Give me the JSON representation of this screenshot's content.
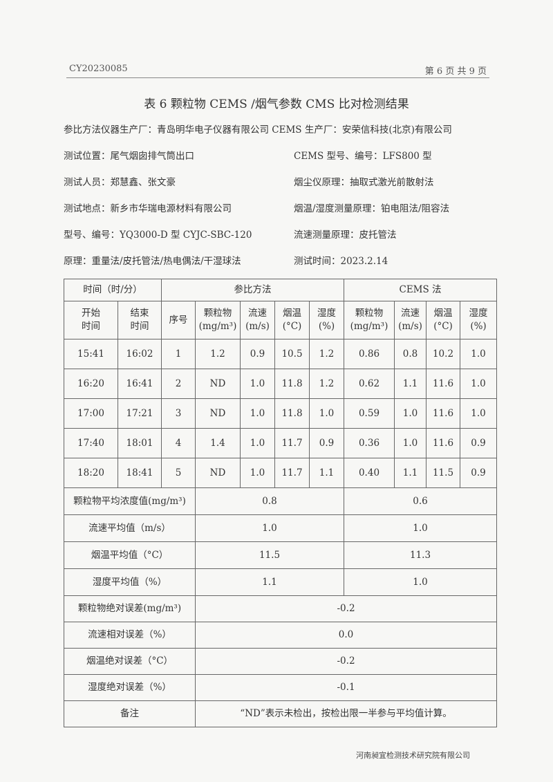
{
  "header": {
    "report_no": "CY20230085",
    "page_info": "第 6 页 共 9 页"
  },
  "title": "表 6  颗粒物 CEMS /烟气参数 CMS 比对检测结果",
  "manufacturer_line": "参比方法仪器生产厂：青岛明华电子仪器有限公司 CEMS 生产厂：安荣信科技(北京)有限公司",
  "info": {
    "left": [
      "测试位置：尾气烟囱排气筒出口",
      "测试人员：郑慧鑫、张文豪",
      "测试地点：新乡市华瑞电源材料有限公司",
      "型号、编号：YQ3000-D 型  CYJC-SBC-120",
      "原理：重量法/皮托管法/热电偶法/干湿球法"
    ],
    "right": [
      "CEMS 型号、编号：LFS800 型",
      "烟尘仪原理：抽取式激光前散射法",
      "烟温/湿度测量原理：铂电阻法/阻容法",
      "流速测量原理：皮托管法",
      "测试时间：2023.2.14"
    ]
  },
  "table": {
    "group_headers": {
      "time": "时间（时/分）",
      "ref": "参比方法",
      "cems": "CEMS 法"
    },
    "columns": [
      "开始\n时间",
      "结束\n时间",
      "序号",
      "颗粒物\n(mg/m³)",
      "流速\n(m/s)",
      "烟温\n(°C)",
      "湿度\n(%)",
      "颗粒物\n(mg/m³)",
      "流速\n(m/s)",
      "烟温\n(°C)",
      "湿度\n(%)"
    ],
    "rows": [
      [
        "15:41",
        "16:02",
        "1",
        "1.2",
        "0.9",
        "10.5",
        "1.2",
        "0.86",
        "0.8",
        "10.2",
        "1.0"
      ],
      [
        "16:20",
        "16:41",
        "2",
        "ND",
        "1.0",
        "11.8",
        "1.2",
        "0.62",
        "1.1",
        "11.6",
        "1.0"
      ],
      [
        "17:00",
        "17:21",
        "3",
        "ND",
        "1.0",
        "11.8",
        "1.0",
        "0.59",
        "1.0",
        "11.6",
        "1.0"
      ],
      [
        "17:40",
        "18:01",
        "4",
        "1.4",
        "1.0",
        "11.7",
        "0.9",
        "0.36",
        "1.0",
        "11.6",
        "0.9"
      ],
      [
        "18:20",
        "18:41",
        "5",
        "ND",
        "1.0",
        "11.7",
        "1.1",
        "0.40",
        "1.1",
        "11.5",
        "0.9"
      ]
    ],
    "averages": [
      {
        "label": "颗粒物平均浓度值(mg/m³)",
        "ref": "0.8",
        "cems": "0.6"
      },
      {
        "label": "流速平均值（m/s）",
        "ref": "1.0",
        "cems": "1.0"
      },
      {
        "label": "烟温平均值（°C）",
        "ref": "11.5",
        "cems": "11.3"
      },
      {
        "label": "湿度平均值（%）",
        "ref": "1.1",
        "cems": "1.0"
      }
    ],
    "errors": [
      {
        "label": "颗粒物绝对误差(mg/m³)",
        "value": "-0.2"
      },
      {
        "label": "流速相对误差（%）",
        "value": "0.0"
      },
      {
        "label": "烟温绝对误差（°C）",
        "value": "-0.2"
      },
      {
        "label": "湿度绝对误差（%）",
        "value": "-0.1"
      }
    ],
    "remark": {
      "label": "备注",
      "value": "“ND”表示未检出，按检出限一半参与平均值计算。"
    }
  },
  "footer": "河南昶宜检测技术研究院有限公司"
}
